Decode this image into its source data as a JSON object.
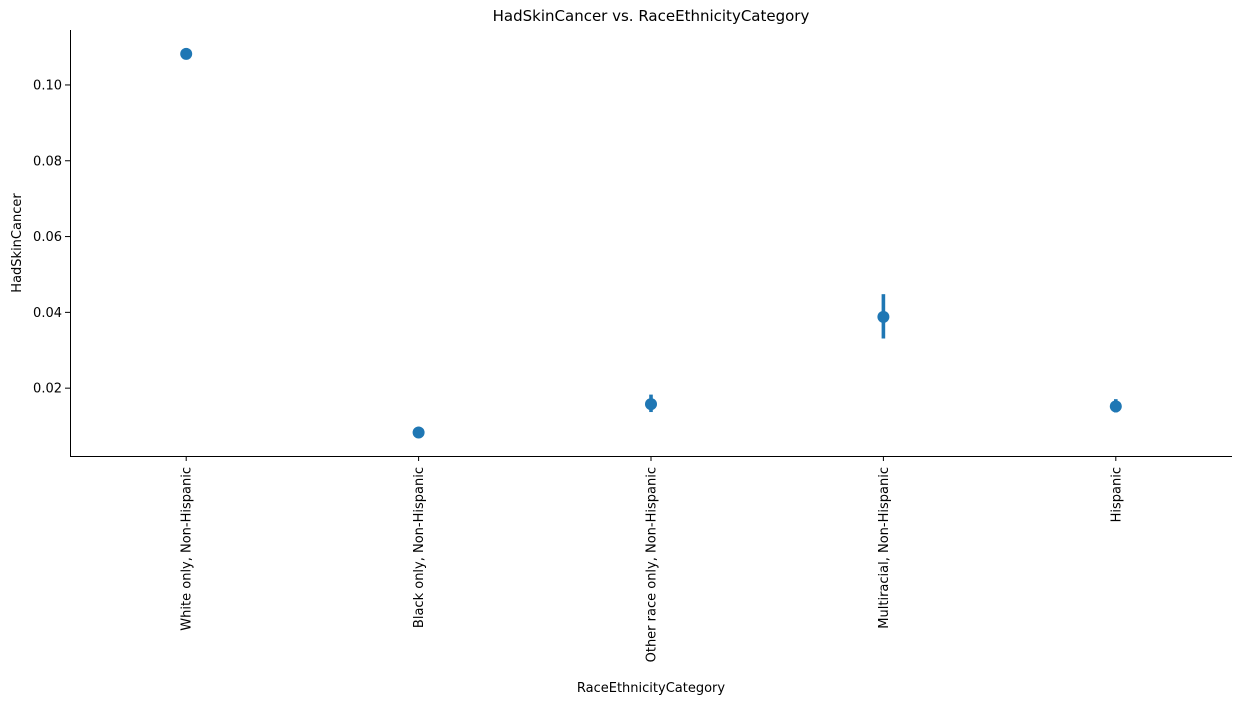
{
  "chart_data": {
    "type": "scatter",
    "title": "HadSkinCancer vs. RaceEthnicityCategory",
    "xlabel": "RaceEthnicityCategory",
    "ylabel": "HadSkinCancer",
    "categories": [
      "White only, Non-Hispanic",
      "Black only, Non-Hispanic",
      "Other race only, Non-Hispanic",
      "Multiracial, Non-Hispanic",
      "Hispanic"
    ],
    "values": [
      0.1082,
      0.0083,
      0.0158,
      0.0388,
      0.0152
    ],
    "ci_low": [
      0.1068,
      0.0074,
      0.0137,
      0.0331,
      0.0136
    ],
    "ci_high": [
      0.1097,
      0.0093,
      0.0183,
      0.0448,
      0.0171
    ],
    "yticks": [
      0.02,
      0.04,
      0.06,
      0.08,
      0.1
    ],
    "ytick_labels": [
      "0.02",
      "0.04",
      "0.06",
      "0.08",
      "0.10"
    ],
    "ylim": [
      0.0021,
      0.1145
    ],
    "grid": false,
    "color": "#1f77b4"
  }
}
